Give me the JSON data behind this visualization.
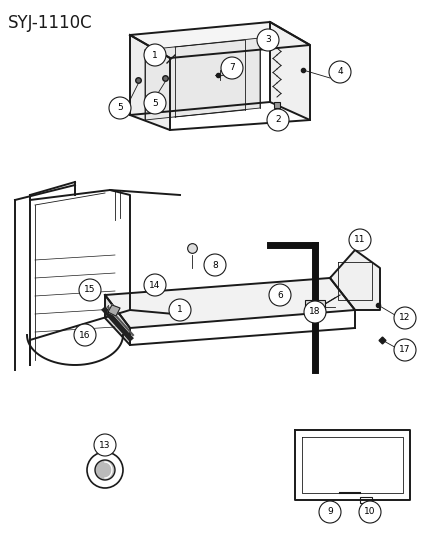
{
  "title": "SYJ-1110C",
  "background_color": "#ffffff",
  "line_color": "#1a1a1a",
  "figsize": [
    4.27,
    5.33
  ],
  "dpi": 100,
  "title_fontsize": 12,
  "label_fontsize": 7
}
